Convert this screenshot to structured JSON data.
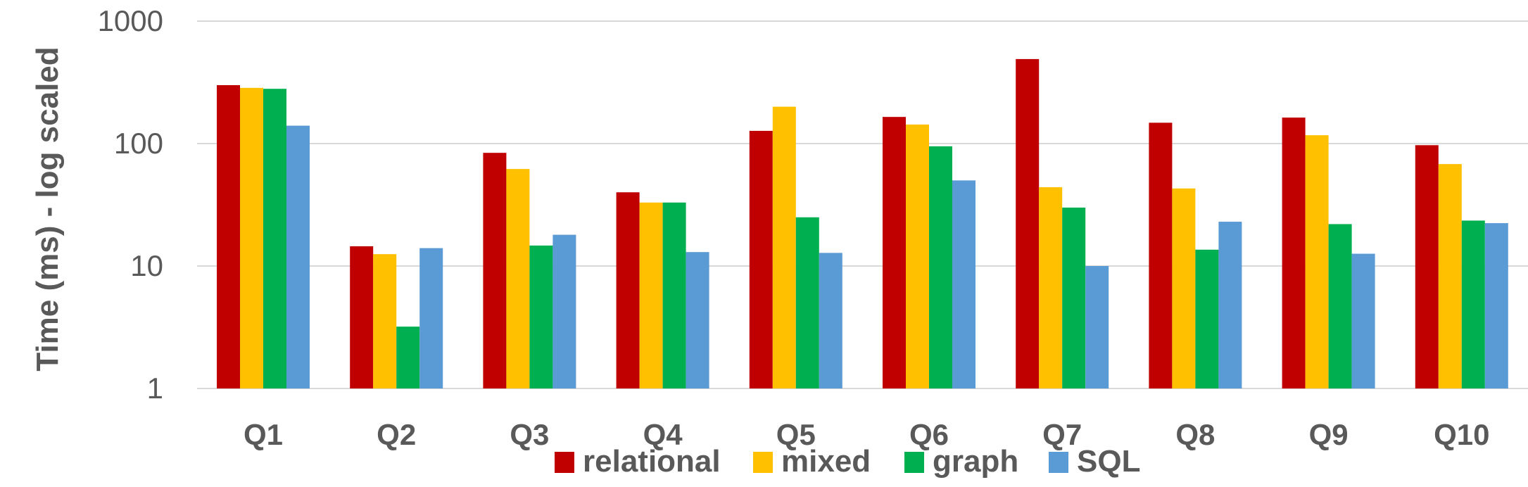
{
  "chart_data": {
    "type": "bar",
    "title": "",
    "xlabel": "",
    "ylabel": "Time (ms) - log scaled",
    "yscale": "log",
    "ylim": [
      1,
      1000
    ],
    "yticks": [
      "1",
      "10",
      "100",
      "1000"
    ],
    "grid": true,
    "legend_position": "bottom",
    "categories": [
      "Q1",
      "Q2",
      "Q3",
      "Q4",
      "Q5",
      "Q6",
      "Q7",
      "Q8",
      "Q9",
      "Q10"
    ],
    "series": [
      {
        "name": "relational",
        "color": "#C00000",
        "values": [
          300,
          14.5,
          84,
          40,
          127,
          165,
          490,
          148,
          163,
          97
        ]
      },
      {
        "name": "mixed",
        "color": "#FFC000",
        "values": [
          285,
          12.5,
          62,
          33,
          200,
          143,
          44,
          43,
          117,
          68
        ]
      },
      {
        "name": "graph",
        "color": "#00B050",
        "values": [
          280,
          3.2,
          14.7,
          33,
          25,
          95,
          30,
          13.6,
          22,
          23.5
        ]
      },
      {
        "name": "SQL",
        "color": "#5B9BD5",
        "values": [
          140,
          14,
          18,
          13,
          12.8,
          50,
          10,
          23,
          12.6,
          22.4
        ]
      }
    ]
  }
}
